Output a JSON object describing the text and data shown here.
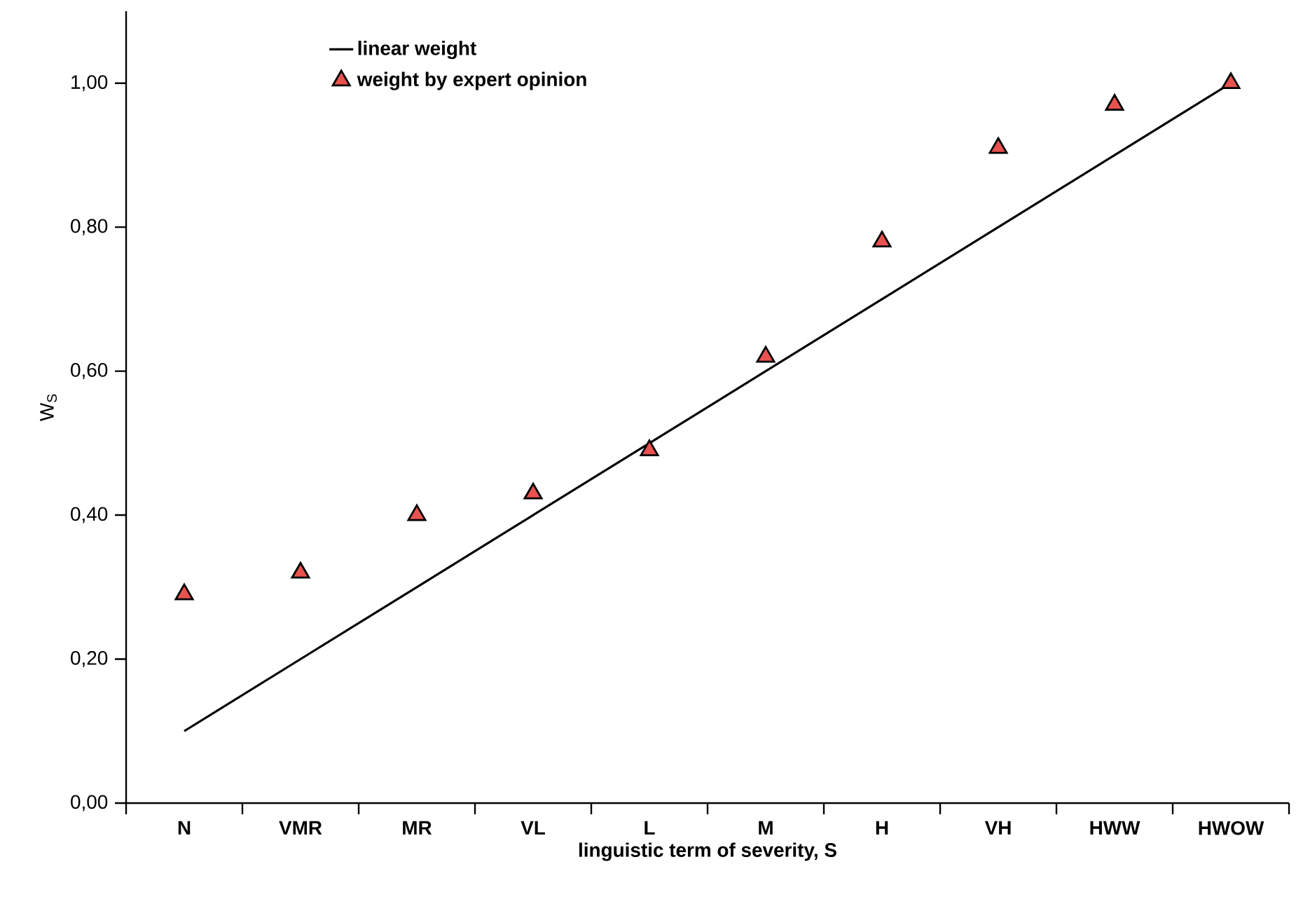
{
  "chart_data": {
    "type": "line",
    "xlabel": "linguistic term of severity, S",
    "ylabel": "W$_{S}$",
    "categories": [
      "N",
      "VMR",
      "MR",
      "VL",
      "L",
      "M",
      "H",
      "VH",
      "HWW",
      "HWOW"
    ],
    "series": [
      {
        "name": "linear weight",
        "color": "#000000",
        "marker": "none",
        "line_style": "solid",
        "values": [
          0.1,
          0.2,
          0.3,
          0.4,
          0.5,
          0.6,
          0.7,
          0.8,
          0.9,
          1.0
        ]
      },
      {
        "name": "weight by expert opinion",
        "type": "scatter",
        "color": "#e8534f",
        "marker": "triangle",
        "values": [
          0.29,
          0.32,
          0.4,
          0.43,
          0.49,
          0.62,
          0.78,
          0.91,
          0.97,
          1.0
        ]
      }
    ],
    "ylim": [
      0,
      1.1
    ],
    "yticks": [
      {
        "value": 0,
        "label": "0,00"
      },
      {
        "value": 0.2,
        "label": "0,20"
      },
      {
        "value": 0.4,
        "label": "0,40"
      },
      {
        "value": 0.6,
        "label": "0,60"
      },
      {
        "value": 0.8,
        "label": "0,80"
      },
      {
        "value": 1.0,
        "label": "1,00"
      }
    ],
    "grid": false,
    "legend": "top left"
  }
}
